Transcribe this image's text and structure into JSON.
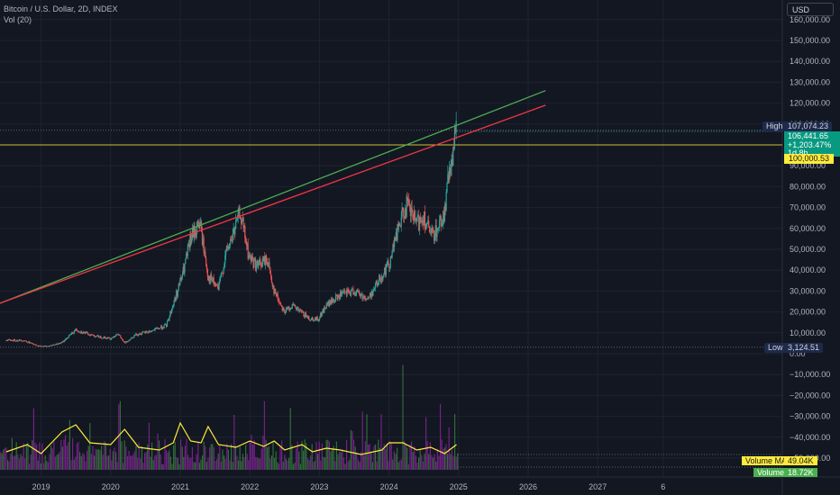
{
  "legend": {
    "symbol_line": "Bitcoin / U.S. Dollar, 2D, INDEX",
    "indicator_line": "Vol (20)"
  },
  "currency_button": "USD",
  "markers": {
    "high_label": "High",
    "high_value": "107,074.23",
    "low_label": "Low",
    "low_value": "3,124.51",
    "last_price": "106,441.65",
    "change": "+1,203.47%",
    "countdown": "1d 8h",
    "horizontal_level": "100,000.53",
    "volume_ma_label": "Volume MA",
    "volume_ma_value": "49.04K",
    "volume_label": "Volume",
    "volume_value": "18.72K"
  },
  "colors": {
    "background": "#131722",
    "up": "#26a69a",
    "down": "#ef5350",
    "trend_green": "#4caf50",
    "trend_red": "#f23645",
    "level_yellow": "#ffeb3b",
    "vol_purple": "#9c27b0",
    "vol_green": "#4caf50",
    "vol_ma": "#ffeb3b"
  },
  "chart_data": {
    "type": "line",
    "scale": "linear",
    "grid": true,
    "x_tick_labels": [
      "2019",
      "2020",
      "2021",
      "2022",
      "2023",
      "2024",
      "2025",
      "2026",
      "2027",
      "6"
    ],
    "y_tick_labels": [
      "160,000.00",
      "150,000.00",
      "140,000.00",
      "130,000.00",
      "120,000.00",
      "110,000.00",
      "90,000.00",
      "80,000.00",
      "70,000.00",
      "60,000.00",
      "50,000.00",
      "40,000.00",
      "30,000.00",
      "20,000.00",
      "10,000.00",
      "0.00",
      "−10,000.00",
      "−20,000.00",
      "−30,000.00",
      "−40,000.00",
      "−50,000.00"
    ],
    "ylim": [
      -53000,
      166000
    ],
    "xlim": [
      2018.5,
      2027.5
    ],
    "series": [
      {
        "values": [
          [
            2018.5,
            6500
          ],
          [
            2018.75,
            6400
          ],
          [
            2018.95,
            3700
          ],
          [
            2019.1,
            3600
          ],
          [
            2019.3,
            5300
          ],
          [
            2019.5,
            11500
          ],
          [
            2019.6,
            10200
          ],
          [
            2019.8,
            8300
          ],
          [
            2020.0,
            7200
          ],
          [
            2020.1,
            9800
          ],
          [
            2020.2,
            5000
          ],
          [
            2020.35,
            9000
          ],
          [
            2020.6,
            11000
          ],
          [
            2020.8,
            13500
          ],
          [
            2020.95,
            29000
          ],
          [
            2021.05,
            40000
          ],
          [
            2021.15,
            55000
          ],
          [
            2021.28,
            63000
          ],
          [
            2021.4,
            37000
          ],
          [
            2021.55,
            31000
          ],
          [
            2021.65,
            47000
          ],
          [
            2021.8,
            61000
          ],
          [
            2021.86,
            68000
          ],
          [
            2021.98,
            47000
          ],
          [
            2022.1,
            42000
          ],
          [
            2022.25,
            45000
          ],
          [
            2022.35,
            30000
          ],
          [
            2022.5,
            20000
          ],
          [
            2022.6,
            23000
          ],
          [
            2022.85,
            17000
          ],
          [
            2022.98,
            16500
          ],
          [
            2023.1,
            23000
          ],
          [
            2023.3,
            28000
          ],
          [
            2023.5,
            30000
          ],
          [
            2023.7,
            26000
          ],
          [
            2023.85,
            35000
          ],
          [
            2024.0,
            43000
          ],
          [
            2024.15,
            62000
          ],
          [
            2024.25,
            71000
          ],
          [
            2024.4,
            62000
          ],
          [
            2024.5,
            66000
          ],
          [
            2024.6,
            56000
          ],
          [
            2024.7,
            60000
          ],
          [
            2024.8,
            68000
          ],
          [
            2024.88,
            91000
          ],
          [
            2024.93,
            99000
          ],
          [
            2024.97,
            106400
          ]
        ]
      }
    ],
    "trendlines": [
      {
        "color": "green",
        "from": [
          2018.5,
          24000
        ],
        "to": [
          2026.25,
          126000
        ]
      },
      {
        "color": "red",
        "from": [
          2018.5,
          24000
        ],
        "to": [
          2026.25,
          119000
        ]
      }
    ],
    "horizontal_lines": [
      100000.53
    ],
    "volume_ma_series": [
      [
        2018.5,
        20
      ],
      [
        2018.8,
        28
      ],
      [
        2019.0,
        18
      ],
      [
        2019.3,
        42
      ],
      [
        2019.5,
        50
      ],
      [
        2019.7,
        30
      ],
      [
        2020.0,
        28
      ],
      [
        2020.2,
        45
      ],
      [
        2020.4,
        25
      ],
      [
        2020.7,
        22
      ],
      [
        2020.9,
        30
      ],
      [
        2021.0,
        52
      ],
      [
        2021.15,
        32
      ],
      [
        2021.3,
        30
      ],
      [
        2021.4,
        48
      ],
      [
        2021.55,
        28
      ],
      [
        2021.8,
        25
      ],
      [
        2022.0,
        32
      ],
      [
        2022.2,
        26
      ],
      [
        2022.35,
        32
      ],
      [
        2022.5,
        22
      ],
      [
        2022.75,
        28
      ],
      [
        2022.9,
        20
      ],
      [
        2023.1,
        24
      ],
      [
        2023.3,
        22
      ],
      [
        2023.6,
        17
      ],
      [
        2023.9,
        22
      ],
      [
        2024.0,
        30
      ],
      [
        2024.2,
        30
      ],
      [
        2024.4,
        22
      ],
      [
        2024.6,
        25
      ],
      [
        2024.8,
        18
      ],
      [
        2024.97,
        28
      ]
    ]
  }
}
